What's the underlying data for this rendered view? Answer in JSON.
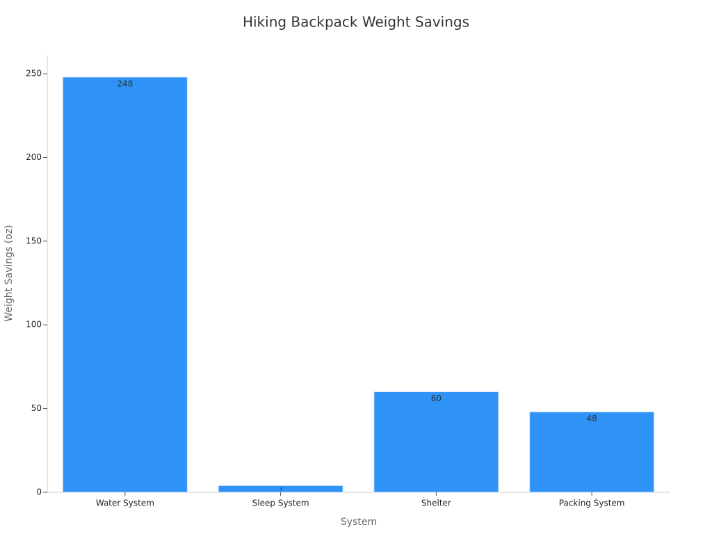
{
  "chart_data": {
    "type": "bar",
    "title": "Hiking Backpack Weight Savings",
    "x_label": "System",
    "y_label": "Weight Savings (oz)",
    "categories": [
      "Water System",
      "Sleep System",
      "Shelter",
      "Packing System"
    ],
    "values": [
      248,
      4,
      60,
      48
    ],
    "color": "#2e92f7",
    "ylim": [
      0,
      260
    ],
    "yticks": [
      0,
      50,
      100,
      150,
      200,
      250
    ],
    "grid": false
  }
}
